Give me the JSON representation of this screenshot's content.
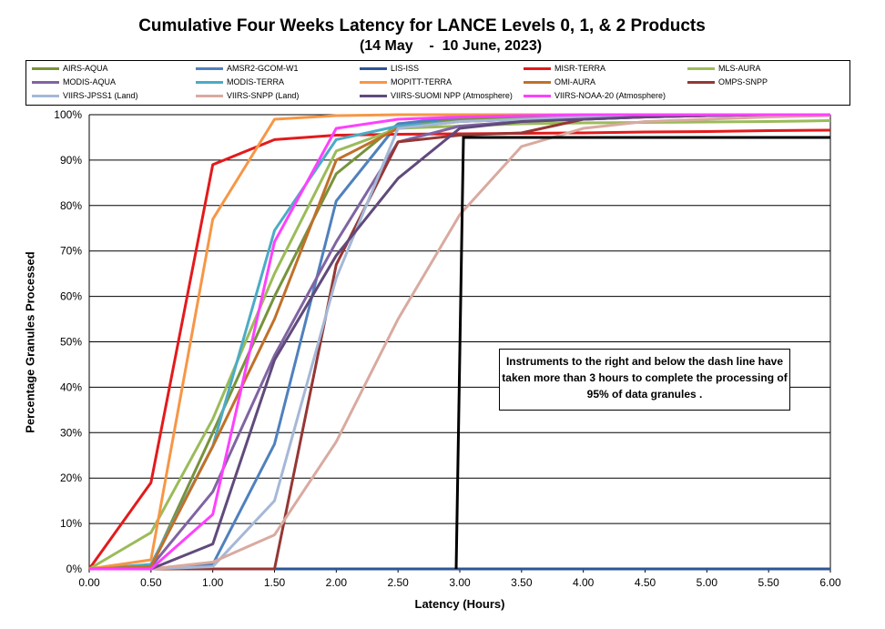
{
  "chart_data": {
    "type": "line",
    "title": "Cumulative Four Weeks Latency for LANCE Levels 0, 1, & 2 Products",
    "subtitle": "(14 May    -  10 June, 2023)",
    "xlabel": "Latency (Hours)",
    "ylabel": "Percentage Granules Processed",
    "x": [
      0,
      0.5,
      1,
      1.5,
      2,
      2.5,
      3,
      3.5,
      4,
      4.5,
      5,
      5.5,
      6
    ],
    "x_tick_labels": [
      "0.00",
      "0.50",
      "1.00",
      "1.50",
      "2.00",
      "2.50",
      "3.00",
      "3.50",
      "4.00",
      "4.50",
      "5.00",
      "5.50",
      "6.00"
    ],
    "y_tick_labels": [
      "0%",
      "10%",
      "20%",
      "30%",
      "40%",
      "50%",
      "60%",
      "70%",
      "80%",
      "90%",
      "100%"
    ],
    "xlim": [
      0,
      6
    ],
    "ylim": [
      0,
      100
    ],
    "grid": "horizontal",
    "legend_position": "top",
    "threshold": {
      "x": 3,
      "y": 95
    },
    "annotation": "Instruments to the right and below the dash line have taken more than 3 hours to complete the processing of 95% of data granules .",
    "series": [
      {
        "name": "AIRS-AQUA",
        "color": "#77933c",
        "values": [
          0,
          0.5,
          30,
          60,
          87,
          98,
          99,
          99.5,
          99.7,
          99.8,
          99.9,
          100,
          100
        ]
      },
      {
        "name": "AMSR2-GCOM-W1",
        "color": "#4f81bd",
        "values": [
          0,
          0,
          1,
          27.5,
          81,
          98,
          99.5,
          99.8,
          100,
          100,
          100,
          100,
          100
        ]
      },
      {
        "name": "LIS-ISS",
        "color": "#2c5597",
        "values": [
          0,
          0,
          0,
          0,
          0,
          0,
          0,
          0,
          0,
          0,
          0,
          0,
          0
        ]
      },
      {
        "name": "MISR-TERRA",
        "color": "#e31a1c",
        "values": [
          0,
          19,
          89,
          94.5,
          95.5,
          95.7,
          95.8,
          95.9,
          96,
          96.2,
          96.3,
          96.5,
          96.6
        ]
      },
      {
        "name": "MLS-AURA",
        "color": "#9bbb59",
        "values": [
          0,
          8,
          33,
          65,
          92,
          97,
          97.5,
          98,
          98.2,
          98.3,
          98.4,
          98.5,
          98.7
        ]
      },
      {
        "name": "MODIS-AQUA",
        "color": "#8064a2",
        "values": [
          0,
          0.5,
          17,
          47,
          72,
          94,
          97.5,
          98.5,
          99,
          99.5,
          99.8,
          100,
          100
        ]
      },
      {
        "name": "MODIS-TERRA",
        "color": "#4bacc6",
        "values": [
          0,
          1,
          27,
          74.5,
          94.5,
          97.5,
          98.5,
          99,
          99.5,
          99.8,
          100,
          100,
          100
        ]
      },
      {
        "name": "MOPITT-TERRA",
        "color": "#f79646",
        "values": [
          0,
          2,
          77,
          99,
          99.8,
          100,
          100,
          100,
          100,
          100,
          100,
          100,
          100
        ]
      },
      {
        "name": "OMI-AURA",
        "color": "#c0702a",
        "values": [
          0,
          0.5,
          27,
          55,
          90,
          97,
          98.5,
          99,
          99.5,
          99.8,
          100,
          100,
          100
        ]
      },
      {
        "name": "OMPS-SNPP",
        "color": "#953735",
        "values": [
          0,
          0,
          0,
          0,
          67,
          94,
          95.5,
          96,
          99,
          99.5,
          99.8,
          100,
          100
        ]
      },
      {
        "name": "VIIRS-JPSS1 (Land)",
        "color": "#a5b8d6",
        "values": [
          0,
          0,
          0.5,
          15,
          64,
          97,
          98.5,
          99,
          99.5,
          99.8,
          100,
          100,
          100
        ]
      },
      {
        "name": "VIIRS-SNPP (Land)",
        "color": "#d9aaa0",
        "values": [
          0,
          0,
          1.5,
          7.5,
          28,
          55,
          78,
          93,
          97,
          98.5,
          99,
          99.5,
          99.8
        ]
      },
      {
        "name": "VIIRS-SUOMI NPP (Atmosphere)",
        "color": "#604a7b",
        "values": [
          0,
          0,
          5.5,
          46,
          69,
          86,
          97,
          98.5,
          99,
          99.5,
          99.8,
          100,
          100
        ]
      },
      {
        "name": "VIIRS-NOAA-20 (Atmosphere)",
        "color": "#ff40ff",
        "values": [
          0,
          0,
          12,
          72,
          97,
          99,
          99.5,
          99.8,
          100,
          100,
          100,
          100,
          100
        ]
      }
    ]
  }
}
